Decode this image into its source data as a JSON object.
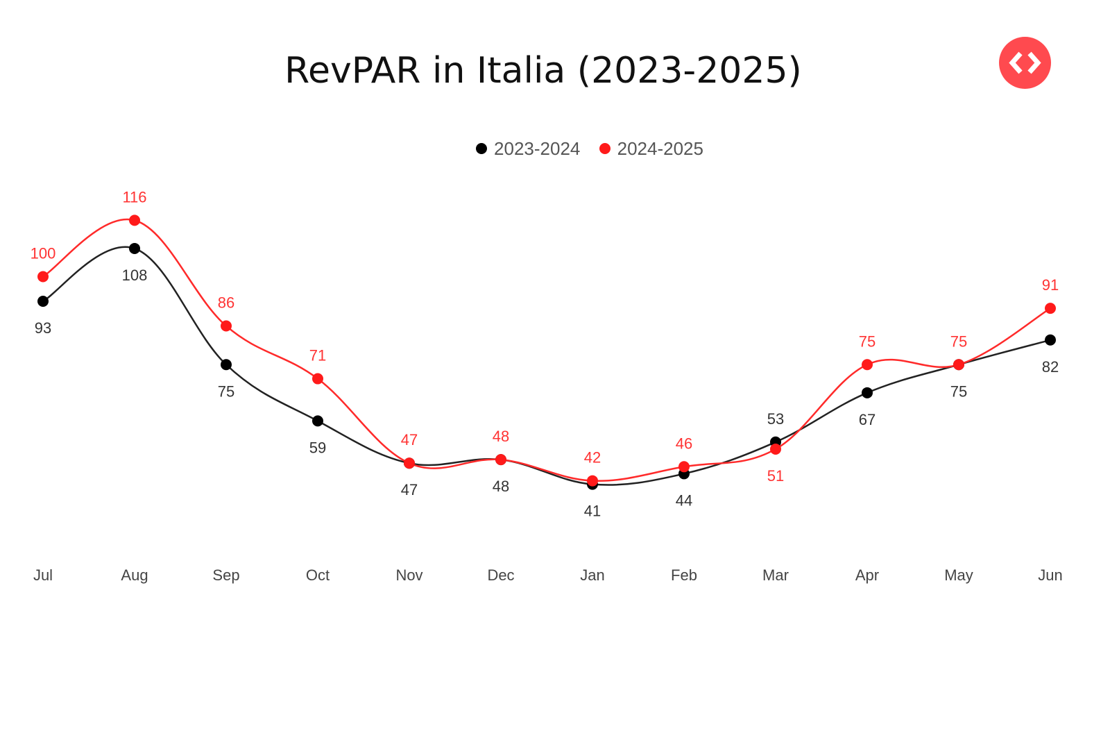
{
  "chart_data": {
    "type": "line",
    "title": "RevPAR in Italia (2023-2025)",
    "categories": [
      "Jul",
      "Aug",
      "Sep",
      "Oct",
      "Nov",
      "Dec",
      "Jan",
      "Feb",
      "Mar",
      "Apr",
      "May",
      "Jun"
    ],
    "series": [
      {
        "name": "2023-2024",
        "color": "#000000",
        "values": [
          93,
          108,
          75,
          59,
          47,
          48,
          41,
          44,
          53,
          67,
          75,
          82
        ]
      },
      {
        "name": "2024-2025",
        "color": "#ff1a1a",
        "values": [
          100,
          116,
          86,
          71,
          47,
          48,
          42,
          46,
          51,
          75,
          75,
          91
        ]
      }
    ],
    "legend": "top-center",
    "grid": false,
    "ylabel": "",
    "xlabel": ""
  },
  "logo": {
    "name": "code-brackets-icon",
    "color": "#ff4a4f"
  }
}
